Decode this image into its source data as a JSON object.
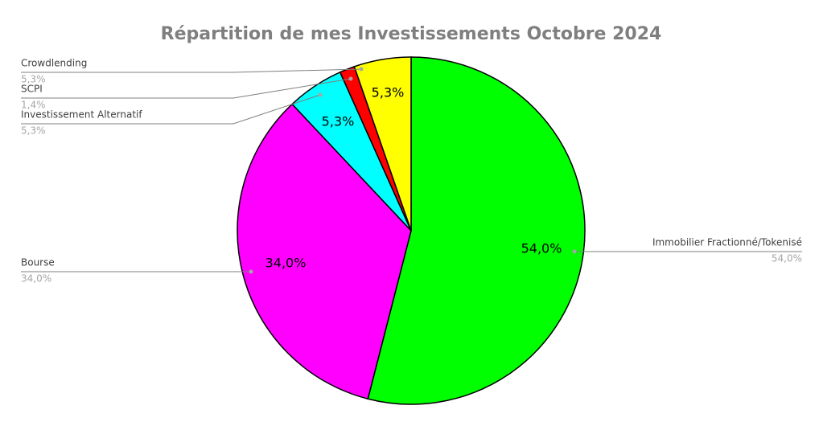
{
  "chart_data": {
    "type": "pie",
    "title": "Répartition de mes Investissements Octobre 2024",
    "categories": [
      "Immobilier Fractionné/Tokenisé",
      "Bourse",
      "Investissement Alternatif",
      "SCPI",
      "Crowdlending"
    ],
    "values": [
      54.0,
      34.0,
      5.3,
      1.4,
      5.3
    ],
    "value_labels": [
      "54,0%",
      "34,0%",
      "5,3%",
      "1,4%",
      "5,3%"
    ],
    "colors": [
      "#00ff00",
      "#ff00ff",
      "#00ffff",
      "#ff0000",
      "#ffff00"
    ]
  }
}
